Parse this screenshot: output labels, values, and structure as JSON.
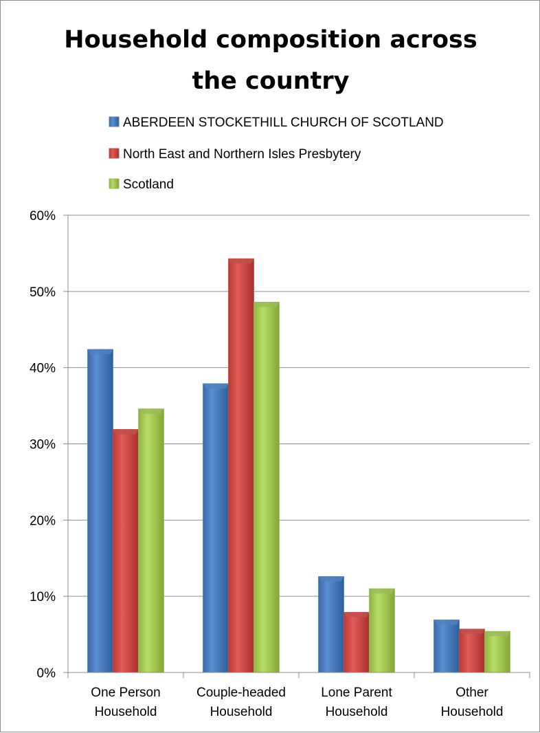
{
  "chart_data": {
    "type": "bar",
    "title": "Household composition across the country",
    "title_lines": [
      "Household composition across",
      "the country"
    ],
    "categories": [
      "One Person Household",
      "Couple-headed Household",
      "Lone Parent Household",
      "Other Household"
    ],
    "category_lines": [
      [
        "One Person",
        "Household"
      ],
      [
        "Couple-headed",
        "Household"
      ],
      [
        "Lone Parent",
        "Household"
      ],
      [
        "Other",
        "Household"
      ]
    ],
    "series": [
      {
        "name": "ABERDEEN STOCKETHILL CHURCH OF SCOTLAND",
        "color": "#4f81bd",
        "values": [
          0.424,
          0.379,
          0.126,
          0.069
        ]
      },
      {
        "name": "North East and Northern Isles Presbytery",
        "color": "#c0504d",
        "values": [
          0.319,
          0.543,
          0.079,
          0.057
        ]
      },
      {
        "name": "Scotland",
        "color": "#9bbb59",
        "values": [
          0.346,
          0.486,
          0.11,
          0.054
        ]
      }
    ],
    "ylim": [
      0,
      0.6
    ],
    "yticks": [
      0,
      0.1,
      0.2,
      0.3,
      0.4,
      0.5,
      0.6
    ],
    "ytick_labels": [
      "0%",
      "10%",
      "20%",
      "30%",
      "40%",
      "50%",
      "60%"
    ],
    "grid": true,
    "legend_position": "top"
  }
}
